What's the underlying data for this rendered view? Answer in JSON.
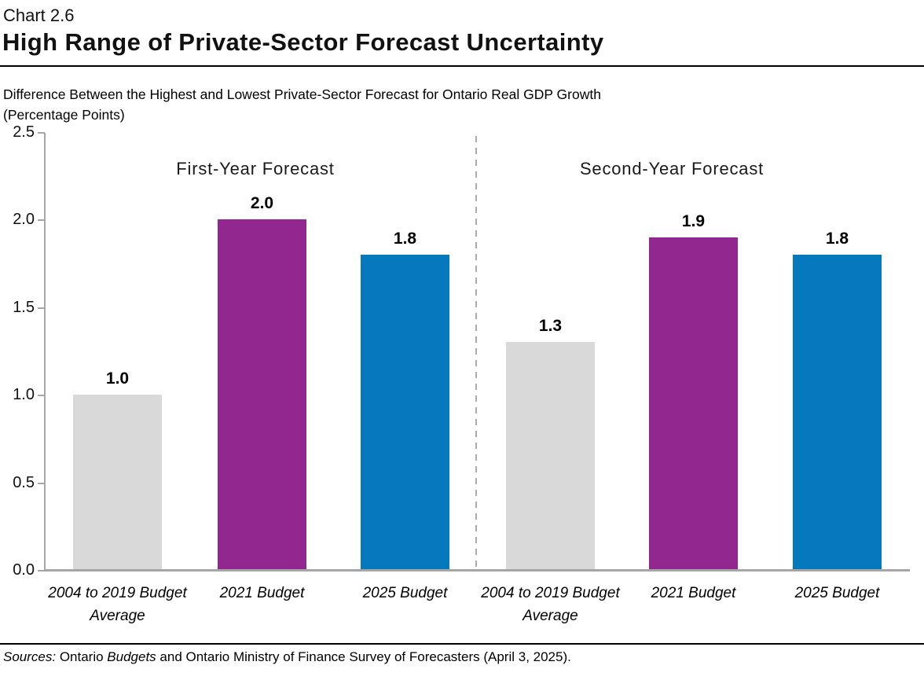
{
  "header": {
    "chart_number": "Chart 2.6",
    "title": "High Range of Private-Sector Forecast Uncertainty",
    "subtitle_line1": "Difference Between the Highest and Lowest Private-Sector Forecast for Ontario Real GDP Growth",
    "subtitle_line2": "(Percentage Points)"
  },
  "chart_data": {
    "type": "bar",
    "title": "High Range of Private-Sector Forecast Uncertainty",
    "subtitle": "Difference Between the Highest and Lowest Private-Sector Forecast for Ontario Real GDP Growth (Percentage Points)",
    "ylabel": "Percentage Points",
    "ylim": [
      0,
      2.5
    ],
    "ytick_labels": [
      "0.0",
      "0.5",
      "1.0",
      "1.5",
      "2.0",
      "2.5"
    ],
    "grid": false,
    "legend": "none",
    "axis_color": "#A6A6A6",
    "divider_style": "dashed",
    "groups": [
      {
        "label": "First-Year Forecast",
        "categories": [
          "2004 to 2019 Budget Average",
          "2021 Budget",
          "2025 Budget"
        ],
        "values": [
          1.0,
          2.0,
          1.8
        ],
        "value_labels": [
          "1.0",
          "2.0",
          "1.8"
        ],
        "bar_colors": [
          "#D9D9D9",
          "#92278F",
          "#0678BE"
        ]
      },
      {
        "label": "Second-Year Forecast",
        "categories": [
          "2004 to 2019 Budget Average",
          "2021 Budget",
          "2025 Budget"
        ],
        "values": [
          1.3,
          1.9,
          1.8
        ],
        "value_labels": [
          "1.3",
          "1.9",
          "1.8"
        ],
        "bar_colors": [
          "#D9D9D9",
          "#92278F",
          "#0678BE"
        ]
      }
    ]
  },
  "footer": {
    "sources_segments": [
      {
        "text": "Sources:",
        "italic": true
      },
      {
        "text": " Ontario ",
        "italic": false
      },
      {
        "text": "Budgets",
        "italic": true
      },
      {
        "text": " and Ontario Ministry of Finance Survey of Forecasters (April 3, 2025).",
        "italic": false
      }
    ]
  }
}
